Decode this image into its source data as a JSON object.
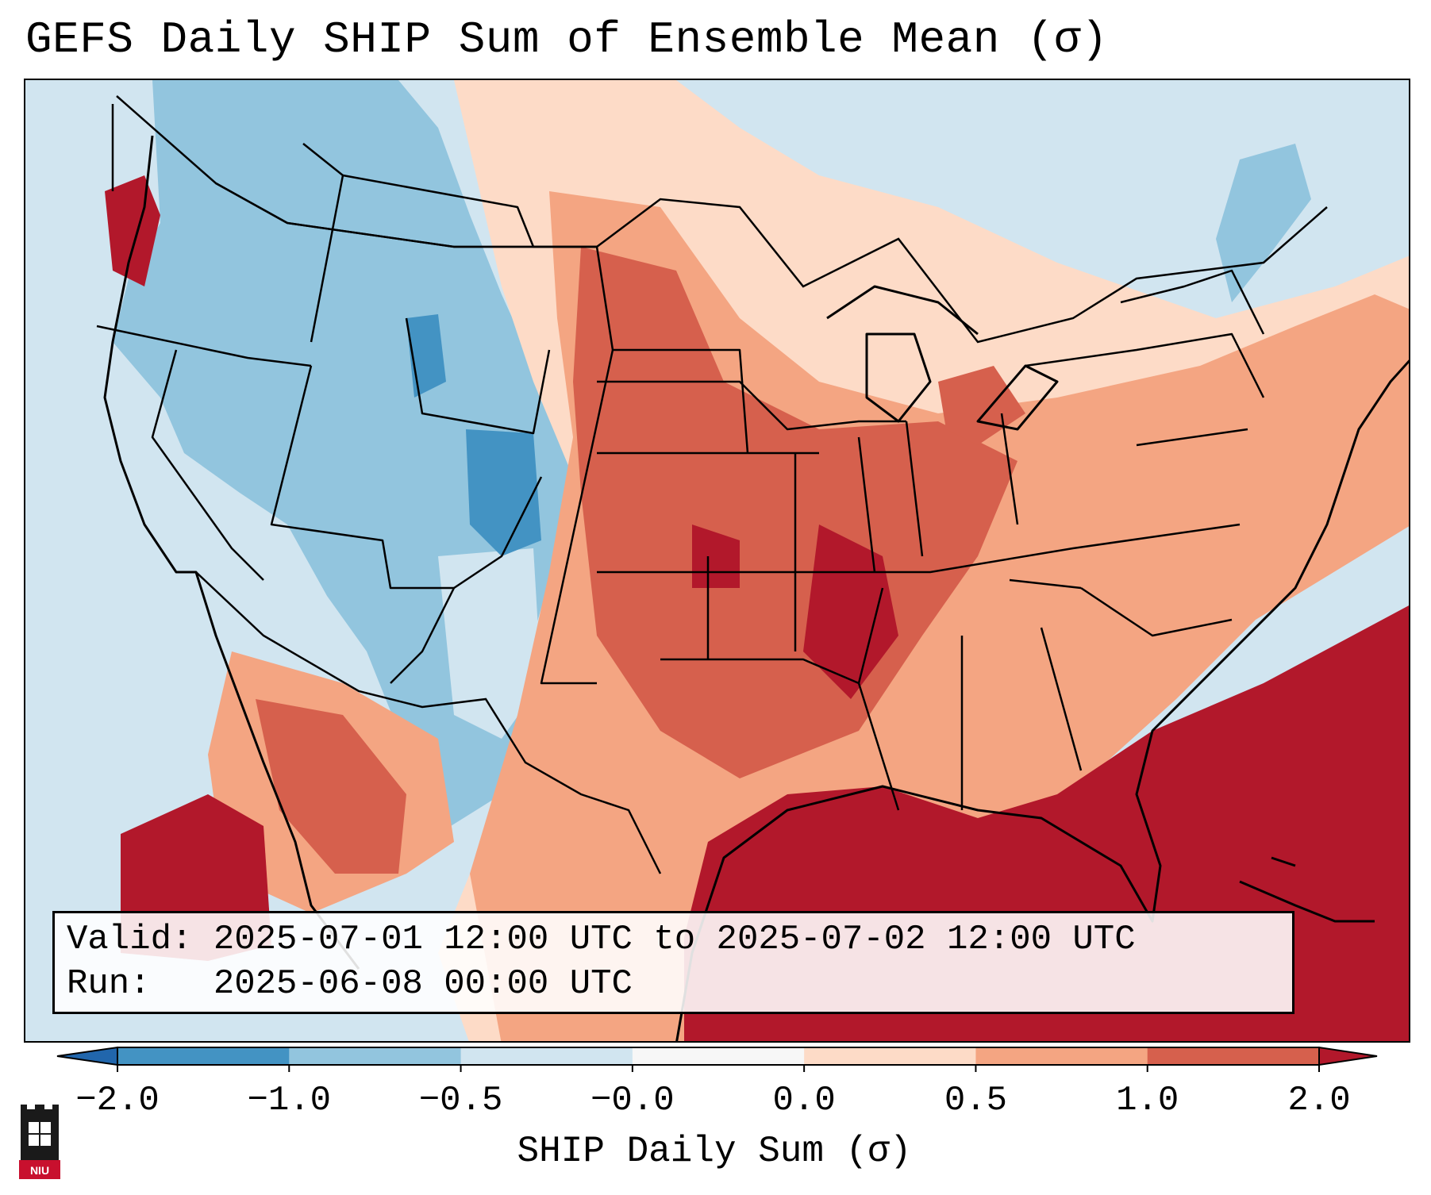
{
  "title": "GEFS Daily SHIP Sum of Ensemble Mean (σ)",
  "info": {
    "valid_line": "Valid: 2025-07-01 12:00 UTC to 2025-07-02 12:00 UTC",
    "run_line": "Run:   2025-06-08 00:00 UTC"
  },
  "colorbar": {
    "label": "SHIP Daily Sum (σ)",
    "ticks": [
      "−2.0",
      "−1.0",
      "−0.5",
      "−0.0",
      "0.0",
      "0.5",
      "1.0",
      "2.0"
    ],
    "bins": [
      {
        "from": -2.0,
        "to": -1.0,
        "color": "#4393c3"
      },
      {
        "from": -1.0,
        "to": -0.5,
        "color": "#92c5de"
      },
      {
        "from": -0.5,
        "to": 0.0,
        "color": "#d1e5f0"
      },
      {
        "from": 0.0,
        "to": 0.0,
        "color": "#f7f7f7"
      },
      {
        "from": 0.0,
        "to": 0.5,
        "color": "#fddbc7"
      },
      {
        "from": 0.5,
        "to": 1.0,
        "color": "#f4a582"
      },
      {
        "from": 1.0,
        "to": 2.0,
        "color": "#d6604d"
      }
    ],
    "under_color": "#2166ac",
    "over_color": "#b2182b",
    "extend": "both"
  },
  "map": {
    "region": "Continental United States",
    "projection": "Lambert Conformal",
    "field": "SHIP daily sum anomaly (σ)",
    "boundaries": [
      "coastlines",
      "country borders",
      "state borders"
    ]
  },
  "logo": {
    "text": "NIU",
    "icon": "niu-castle-logo"
  },
  "colors": {
    "strong_negative": "#4393c3",
    "moderate_negative": "#92c5de",
    "weak_negative": "#d1e5f0",
    "weak_positive": "#fddbc7",
    "moderate_positive": "#f4a582",
    "strong_positive": "#d6604d",
    "extreme_positive": "#b2182b"
  }
}
